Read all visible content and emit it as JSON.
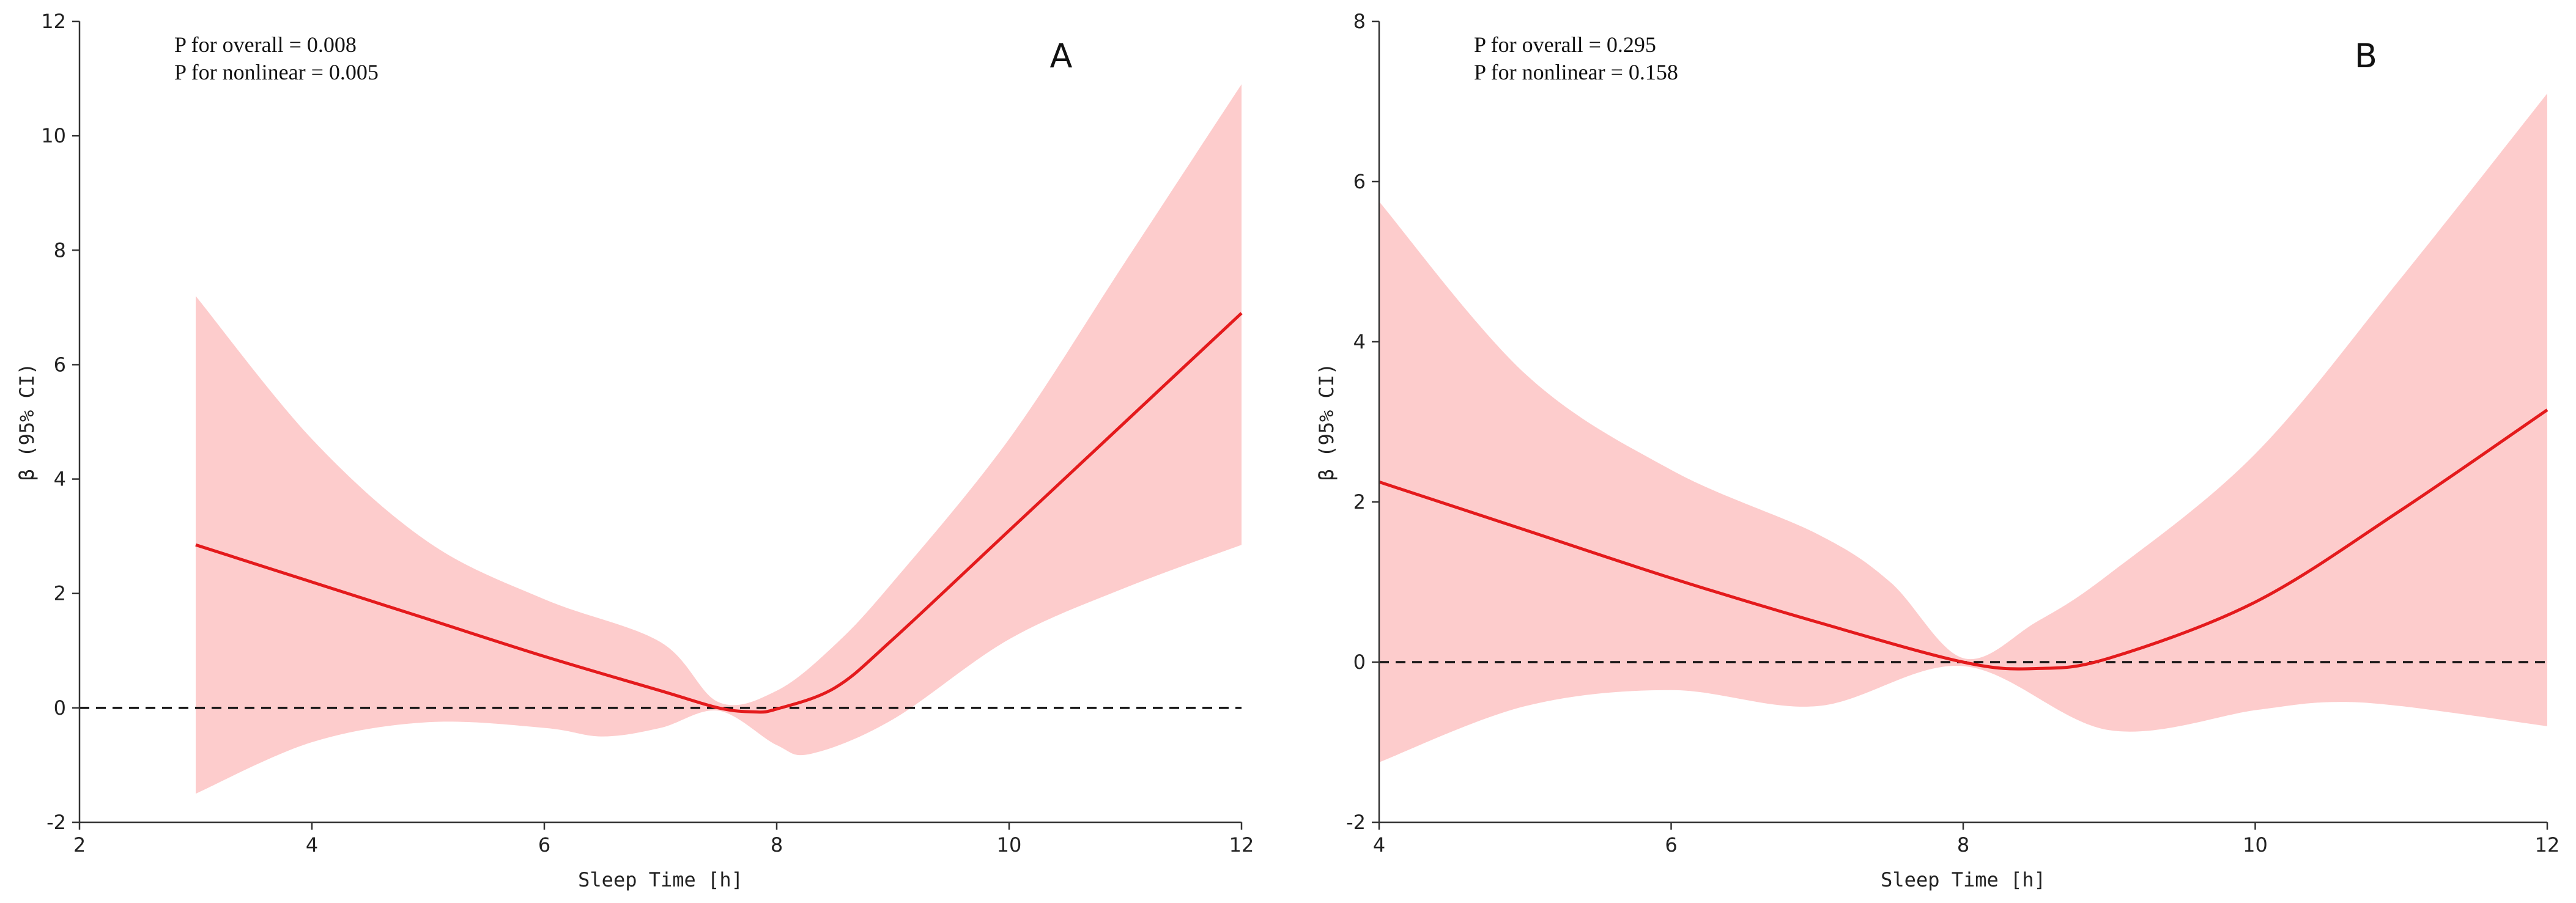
{
  "chart_data": [
    {
      "type": "line",
      "panel_label": "A",
      "annotations": [
        "P for overall = 0.008",
        "P for nonlinear = 0.005"
      ],
      "xlabel": "Sleep Time [h]",
      "ylabel": "β (95% CI)",
      "xlim": [
        2,
        12
      ],
      "ylim": [
        -2,
        12
      ],
      "xticks": [
        2,
        4,
        6,
        8,
        10,
        12
      ],
      "yticks": [
        -2,
        0,
        2,
        4,
        6,
        8,
        10,
        12
      ],
      "reference_line_y": 0,
      "series": [
        {
          "name": "estimate",
          "x": [
            3,
            4,
            5,
            6,
            7,
            7.5,
            7.8,
            8,
            8.5,
            9,
            10,
            11,
            12
          ],
          "y": [
            2.85,
            2.2,
            1.55,
            0.9,
            0.3,
            0.0,
            -0.07,
            -0.02,
            0.35,
            1.2,
            3.1,
            5.0,
            6.9
          ]
        },
        {
          "name": "ci_upper",
          "x": [
            3,
            4,
            5,
            6,
            7,
            7.5,
            8,
            8.5,
            9,
            10,
            11,
            12
          ],
          "y": [
            7.2,
            4.7,
            2.9,
            1.9,
            1.15,
            0.1,
            0.3,
            1.1,
            2.2,
            4.7,
            7.8,
            10.9
          ]
        },
        {
          "name": "ci_lower",
          "x": [
            3,
            4,
            5,
            6,
            6.5,
            7,
            7.5,
            8,
            8.3,
            9,
            10,
            11,
            12
          ],
          "y": [
            -1.5,
            -0.6,
            -0.25,
            -0.35,
            -0.5,
            -0.35,
            -0.05,
            -0.65,
            -0.8,
            -0.2,
            1.2,
            2.1,
            2.85
          ]
        }
      ]
    },
    {
      "type": "line",
      "panel_label": "B",
      "annotations": [
        "P for overall = 0.295",
        "P for nonlinear = 0.158"
      ],
      "xlabel": "Sleep Time [h]",
      "ylabel": "β (95% CI)",
      "xlim": [
        4,
        12
      ],
      "ylim": [
        -2,
        8
      ],
      "xticks": [
        4,
        6,
        8,
        10,
        12
      ],
      "yticks": [
        -2,
        0,
        2,
        4,
        6,
        8
      ],
      "reference_line_y": 0,
      "series": [
        {
          "name": "estimate",
          "x": [
            4,
            5,
            6,
            7,
            8,
            8.5,
            9,
            10,
            11,
            12
          ],
          "y": [
            2.25,
            1.65,
            1.05,
            0.5,
            0.0,
            -0.08,
            0.05,
            0.75,
            1.9,
            3.15
          ]
        },
        {
          "name": "ci_upper",
          "x": [
            4,
            5,
            6,
            7,
            7.5,
            8,
            8.5,
            9,
            10,
            11,
            12
          ],
          "y": [
            5.75,
            3.6,
            2.4,
            1.6,
            1.0,
            0.05,
            0.5,
            1.1,
            2.6,
            4.8,
            7.1
          ]
        },
        {
          "name": "ci_lower",
          "x": [
            4,
            5,
            6,
            7,
            8,
            9,
            10,
            10.5,
            11,
            12
          ],
          "y": [
            -1.25,
            -0.55,
            -0.35,
            -0.55,
            -0.05,
            -0.85,
            -0.6,
            -0.5,
            -0.55,
            -0.8
          ]
        }
      ]
    }
  ]
}
